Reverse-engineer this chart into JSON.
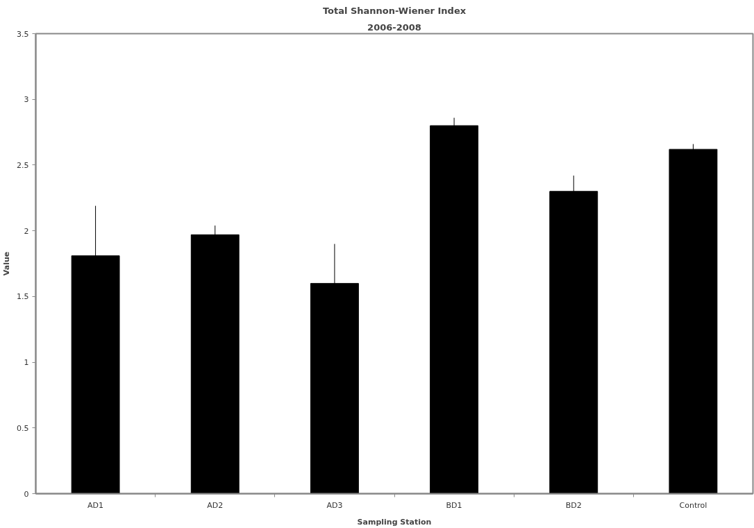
{
  "chart_data": {
    "type": "bar",
    "title": "Total Shannon-Wiener Index",
    "subtitle": "2006-2008",
    "xlabel": "Sampling Station",
    "ylabel": "Value",
    "categories": [
      "AD1",
      "AD2",
      "AD3",
      "BD1",
      "BD2",
      "Control"
    ],
    "values": [
      1.81,
      1.97,
      1.6,
      2.8,
      2.3,
      2.62
    ],
    "errors": [
      0.38,
      0.07,
      0.3,
      0.06,
      0.12,
      0.04
    ],
    "color": "#000000",
    "ylim": [
      0,
      3.5
    ],
    "yticks": [
      0,
      0.5,
      1,
      1.5,
      2,
      2.5,
      3,
      3.5
    ],
    "grid": false
  }
}
